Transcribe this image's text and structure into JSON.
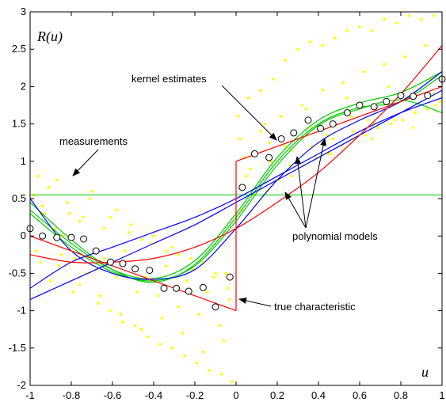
{
  "chart_data": {
    "type": "scatter",
    "xlim": [
      -1,
      1
    ],
    "ylim": [
      -2,
      3
    ],
    "xticks": [
      "-1",
      "-0.8",
      "-0.6",
      "-0.4",
      "-0.2",
      "0",
      "0.2",
      "0.4",
      "0.6",
      "0.8",
      "1"
    ],
    "yticks": [
      "-2",
      "-1.5",
      "-1",
      "-0.5",
      "0",
      "0.5",
      "1",
      "1.5",
      "2",
      "2.5",
      "3"
    ],
    "xtick_values": [
      -1,
      -0.8,
      -0.6,
      -0.4,
      -0.2,
      0,
      0.2,
      0.4,
      0.6,
      0.8,
      1
    ],
    "ytick_values": [
      -2,
      -1.5,
      -1,
      -0.5,
      0,
      0.5,
      1,
      1.5,
      2,
      2.5,
      3
    ],
    "ylabel": "R(u)",
    "xlabel": "u",
    "grid": false,
    "colors": {
      "measurements": "#ffff00",
      "true": "#ff0000",
      "poly_green": "#00cc00",
      "poly_blue": "#0000ff",
      "poly_red": "#ff0000",
      "kernel": "#000000"
    },
    "annotations": [
      {
        "text": "kernel estimates"
      },
      {
        "text": "measurements"
      },
      {
        "text": "polynomial models"
      },
      {
        "text": "true characteristic"
      }
    ],
    "true_characteristic": {
      "left": {
        "x": [
          -1,
          0
        ],
        "y": [
          0,
          -1
        ]
      },
      "right": {
        "x": [
          0,
          1
        ],
        "y": [
          1,
          2
        ]
      }
    },
    "horizontal_line": {
      "y": 0.55
    },
    "kernel_estimates": {
      "x": [
        -1.0,
        -0.94,
        -0.87,
        -0.8,
        -0.74,
        -0.68,
        -0.61,
        -0.55,
        -0.49,
        -0.42,
        -0.35,
        -0.29,
        -0.23,
        -0.16,
        -0.1,
        -0.03,
        0.03,
        0.09,
        0.16,
        0.22,
        0.28,
        0.35,
        0.41,
        0.47,
        0.54,
        0.6,
        0.67,
        0.73,
        0.8,
        0.86,
        0.93,
        1.0
      ],
      "y": [
        0.1,
        0.0,
        -0.02,
        -0.02,
        -0.04,
        -0.2,
        -0.35,
        -0.37,
        -0.44,
        -0.46,
        -0.7,
        -0.7,
        -0.74,
        -0.69,
        -0.95,
        -0.55,
        0.65,
        1.1,
        1.05,
        1.3,
        1.38,
        1.55,
        1.44,
        1.5,
        1.65,
        1.75,
        1.73,
        1.8,
        1.88,
        1.87,
        1.88,
        2.1
      ]
    },
    "polynomial_models": [
      {
        "color": "#00cc00",
        "x": [
          -1,
          -0.8,
          -0.6,
          -0.4,
          -0.2,
          0,
          0.2,
          0.4,
          0.6,
          0.8,
          1
        ],
        "y": [
          0.45,
          -0.05,
          -0.45,
          -0.62,
          -0.38,
          0.25,
          1.0,
          1.5,
          1.72,
          1.8,
          2.15
        ]
      },
      {
        "color": "#00cc00",
        "x": [
          -1,
          -0.8,
          -0.6,
          -0.4,
          -0.2,
          0,
          0.2,
          0.4,
          0.6,
          0.8,
          1
        ],
        "y": [
          0.35,
          -0.1,
          -0.45,
          -0.57,
          -0.33,
          0.3,
          1.05,
          1.55,
          1.78,
          1.92,
          2.2
        ]
      },
      {
        "color": "#00cc00",
        "x": [
          -1,
          -0.8,
          -0.6,
          -0.4,
          -0.2,
          0,
          0.2,
          0.4,
          0.6,
          0.8,
          1
        ],
        "y": [
          0.3,
          -0.15,
          -0.48,
          -0.6,
          -0.4,
          0.2,
          0.95,
          1.48,
          1.7,
          1.82,
          1.65
        ]
      },
      {
        "color": "#0000ff",
        "x": [
          -1,
          -0.8,
          -0.6,
          -0.4,
          -0.2,
          0,
          0.2,
          0.4,
          0.6,
          0.8,
          1
        ],
        "y": [
          0.5,
          -0.2,
          -0.5,
          -0.58,
          -0.45,
          0.1,
          0.75,
          1.25,
          1.55,
          1.8,
          2.2
        ]
      },
      {
        "color": "#0000ff",
        "x": [
          -1,
          -0.8,
          -0.6,
          -0.4,
          -0.2,
          0,
          0.2,
          0.4,
          0.6,
          0.8,
          1
        ],
        "y": [
          -0.85,
          -0.6,
          -0.35,
          -0.1,
          0.15,
          0.45,
          0.75,
          1.05,
          1.35,
          1.65,
          1.95
        ]
      },
      {
        "color": "#0000ff",
        "x": [
          -1,
          -0.8,
          -0.6,
          -0.4,
          -0.2,
          0,
          0.2,
          0.4,
          0.6,
          0.8,
          1
        ],
        "y": [
          -0.7,
          -0.35,
          -0.15,
          0.05,
          0.25,
          0.5,
          0.8,
          1.1,
          1.4,
          1.65,
          1.85
        ]
      },
      {
        "color": "#ff0000",
        "x": [
          -1,
          -0.8,
          -0.6,
          -0.4,
          -0.2,
          0,
          0.2,
          0.4,
          0.6,
          0.8,
          1
        ],
        "y": [
          -0.25,
          -0.35,
          -0.35,
          -0.3,
          -0.15,
          0.1,
          0.45,
          0.85,
          1.35,
          1.9,
          2.55
        ]
      }
    ],
    "measurements_note": "dense yellow scatter around the true characteristic, roughly ±1 spread",
    "measurements": {
      "x": [
        -0.98,
        -0.95,
        -0.93,
        -0.9,
        -0.87,
        -0.85,
        -0.82,
        -0.79,
        -0.76,
        -0.73,
        -0.7,
        -0.67,
        -0.64,
        -0.61,
        -0.58,
        -0.55,
        -0.52,
        -0.49,
        -0.46,
        -0.43,
        -0.4,
        -0.37,
        -0.34,
        -0.31,
        -0.28,
        -0.25,
        -0.22,
        -0.19,
        -0.16,
        -0.13,
        -0.1,
        -0.07,
        -0.04,
        -0.02,
        -0.96,
        -0.91,
        -0.86,
        -0.81,
        -0.76,
        -0.71,
        -0.66,
        -0.61,
        -0.56,
        -0.51,
        -0.46,
        -0.41,
        -0.36,
        -0.31,
        -0.26,
        -0.21,
        -0.16,
        -0.11,
        -0.06,
        -0.03,
        -0.97,
        -0.88,
        -0.78,
        -0.68,
        -0.58,
        -0.48,
        -0.38,
        -0.28,
        -0.18,
        -0.08,
        -0.94,
        -0.84,
        -0.74,
        -0.64,
        -0.54,
        -0.44,
        -0.34,
        -0.24,
        -0.14,
        -0.05,
        0.01,
        0.03,
        0.06,
        0.09,
        0.12,
        0.15,
        0.18,
        0.21,
        0.24,
        0.27,
        0.3,
        0.33,
        0.36,
        0.39,
        0.42,
        0.45,
        0.48,
        0.51,
        0.54,
        0.57,
        0.6,
        0.63,
        0.66,
        0.69,
        0.72,
        0.75,
        0.78,
        0.81,
        0.84,
        0.87,
        0.9,
        0.93,
        0.96,
        0.99,
        0.02,
        0.07,
        0.12,
        0.17,
        0.22,
        0.27,
        0.32,
        0.37,
        0.42,
        0.47,
        0.52,
        0.57,
        0.62,
        0.67,
        0.72,
        0.77,
        0.82,
        0.87,
        0.92,
        0.97,
        0.04,
        0.14,
        0.24,
        0.34,
        0.44,
        0.54,
        0.64,
        0.74,
        0.84,
        0.94,
        0.05,
        0.16,
        0.26,
        0.36,
        0.46,
        0.56,
        0.66,
        0.76,
        0.86,
        0.96
      ],
      "y": [
        0.55,
        -0.35,
        0.3,
        -0.6,
        0.75,
        -0.25,
        0.45,
        -0.75,
        0.2,
        -0.5,
        0.6,
        -0.9,
        0.1,
        -1.0,
        0.35,
        -1.15,
        0.05,
        -1.2,
        -0.05,
        -1.35,
        0.0,
        -1.45,
        -0.2,
        -1.5,
        -0.25,
        -1.6,
        -0.3,
        -1.7,
        -0.35,
        -1.8,
        -0.5,
        -1.85,
        -0.7,
        -1.95,
        0.8,
        0.65,
        -0.4,
        0.3,
        -0.65,
        0.5,
        -0.8,
        0.25,
        -1.05,
        0.15,
        -1.25,
        -0.1,
        -1.1,
        -0.15,
        -1.3,
        -0.45,
        -1.55,
        -0.55,
        -1.4,
        -0.85,
        -0.2,
        0.1,
        -0.3,
        -0.45,
        -0.55,
        -0.75,
        -0.8,
        -0.95,
        -1.05,
        -1.2,
        0.4,
        0.0,
        0.25,
        -0.3,
        -0.2,
        -0.55,
        -0.4,
        -0.6,
        -0.75,
        -0.5,
        1.6,
        0.35,
        1.85,
        0.55,
        1.95,
        0.6,
        2.1,
        0.75,
        2.35,
        0.8,
        2.5,
        0.95,
        2.6,
        1.05,
        2.55,
        1.1,
        2.65,
        1.2,
        2.75,
        1.3,
        2.8,
        1.35,
        2.75,
        1.45,
        2.9,
        1.5,
        2.85,
        1.55,
        2.95,
        1.65,
        2.9,
        1.7,
        2.95,
        1.8,
        1.3,
        0.9,
        1.4,
        1.0,
        1.6,
        1.15,
        1.75,
        1.2,
        1.95,
        1.3,
        2.05,
        1.4,
        2.2,
        1.5,
        2.3,
        1.55,
        2.4,
        1.65,
        2.55,
        1.75,
        1.05,
        1.5,
        1.2,
        1.7,
        1.35,
        1.85,
        1.55,
        2.0,
        1.7,
        2.1,
        0.8,
        1.25,
        0.95,
        1.45,
        1.1,
        1.6,
        1.3,
        1.75,
        1.45,
        1.9
      ]
    }
  }
}
